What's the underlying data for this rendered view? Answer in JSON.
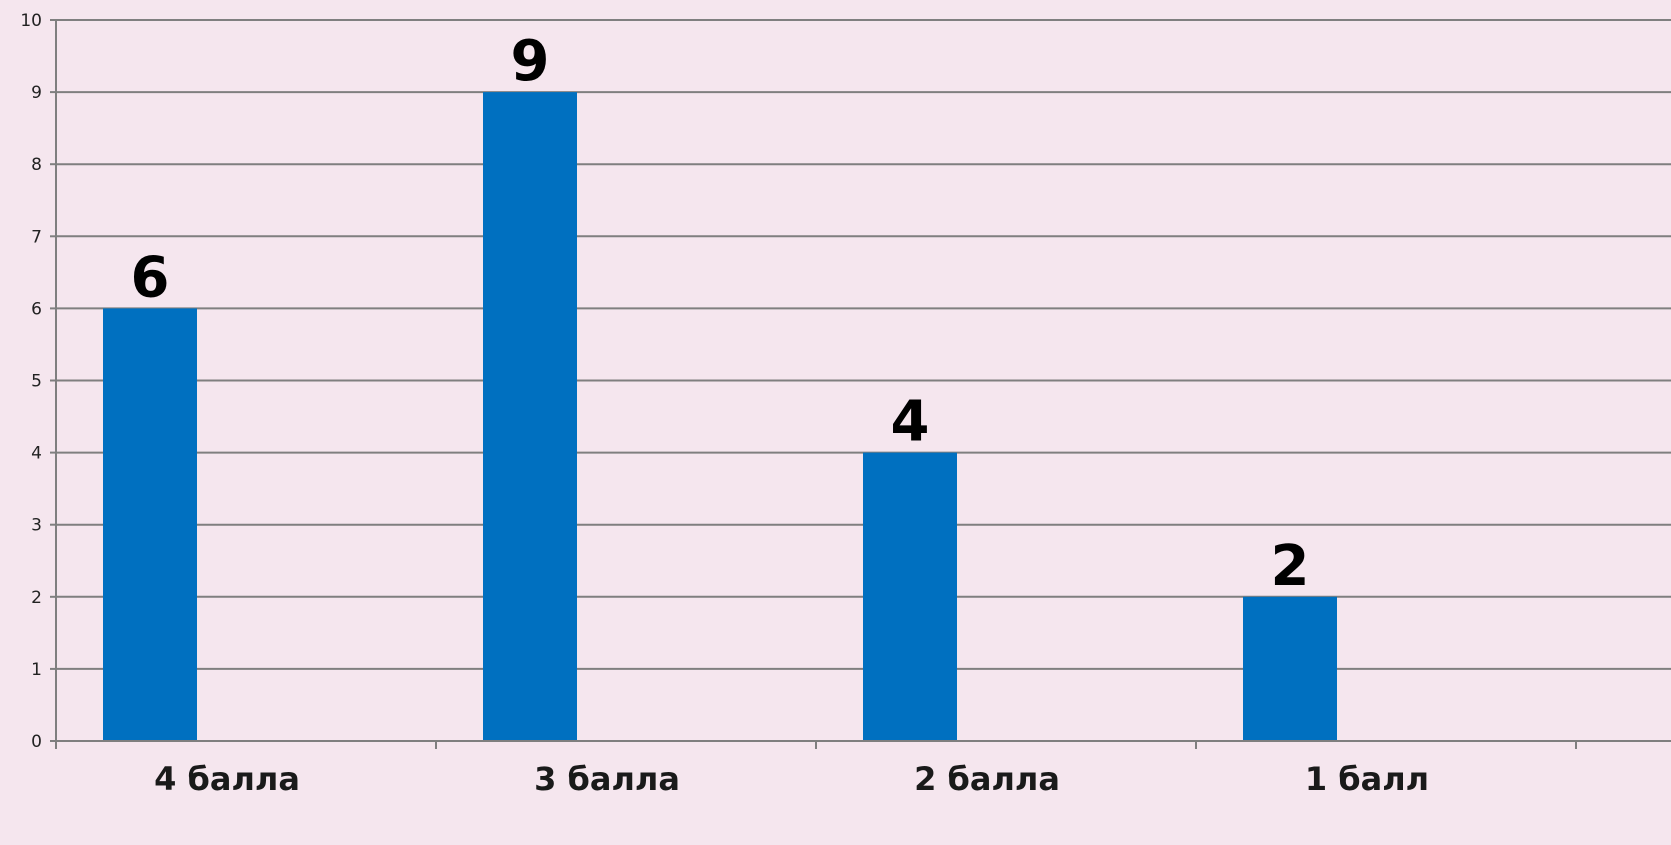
{
  "chart_data": {
    "type": "bar",
    "categories": [
      "4 балла",
      "3 балла",
      "2 балла",
      "1 балл"
    ],
    "values": [
      6,
      9,
      4,
      2
    ],
    "data_labels": [
      "6",
      "9",
      "4",
      "2"
    ],
    "title": "",
    "xlabel": "",
    "ylabel": "",
    "ylim": [
      0,
      10
    ],
    "yticks": [
      "0",
      "1",
      "2",
      "3",
      "4",
      "5",
      "6",
      "7",
      "8",
      "9",
      "10"
    ],
    "grid": true,
    "legend": "none",
    "bar_color": "#0070c0",
    "grid_color": "#7f7f7f",
    "background_color": "#f5e6ee"
  }
}
